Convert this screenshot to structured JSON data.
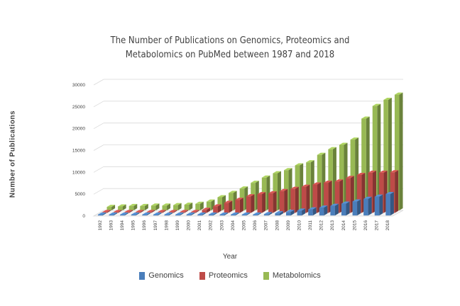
{
  "chart_data": {
    "type": "bar",
    "title": "The Number of Publications on Genomics, Proteomics and",
    "title_line2": "Metabolomics on PubMed between 1987 and 2018",
    "xlabel": "Year",
    "ylabel": "Number of Publications",
    "ylim": [
      0,
      30000
    ],
    "yticks": [
      "0",
      "5000",
      "10000",
      "15000",
      "20000",
      "25000",
      "30000"
    ],
    "grid": true,
    "legend_position": "bottom",
    "three_d": true,
    "categories": [
      "1992",
      "1993",
      "1994",
      "1995",
      "1996",
      "1997",
      "1998",
      "1999",
      "2000",
      "2001",
      "2002",
      "2003",
      "2004",
      "2005",
      "2006",
      "2007",
      "2008",
      "2009",
      "2010",
      "2011",
      "2012",
      "2013",
      "2014",
      "2015",
      "2016",
      "2017",
      "2018"
    ],
    "series": [
      {
        "name": "Genomics",
        "color": "#4a7ebb",
        "values": [
          0,
          0,
          0,
          0,
          0,
          0,
          0,
          0,
          0,
          0,
          0,
          0,
          0,
          100,
          200,
          300,
          500,
          800,
          1100,
          1400,
          1800,
          2200,
          2700,
          3200,
          3800,
          4300,
          4900
        ]
      },
      {
        "name": "Proteomics",
        "color": "#be4b48",
        "values": [
          0,
          0,
          0,
          0,
          0,
          0,
          0,
          0,
          100,
          700,
          1500,
          2300,
          3000,
          3800,
          4300,
          4500,
          5000,
          5500,
          6000,
          6500,
          6900,
          7200,
          8000,
          8700,
          9200,
          9200,
          9300
        ]
      },
      {
        "name": "Metabolomics",
        "color": "#98b954",
        "values": [
          800,
          900,
          1000,
          1000,
          1100,
          1100,
          1200,
          1300,
          1500,
          2000,
          3000,
          4000,
          5000,
          6300,
          7500,
          8500,
          9200,
          10300,
          11000,
          12700,
          14000,
          15000,
          16200,
          21000,
          23900,
          25300,
          26500
        ]
      }
    ]
  }
}
